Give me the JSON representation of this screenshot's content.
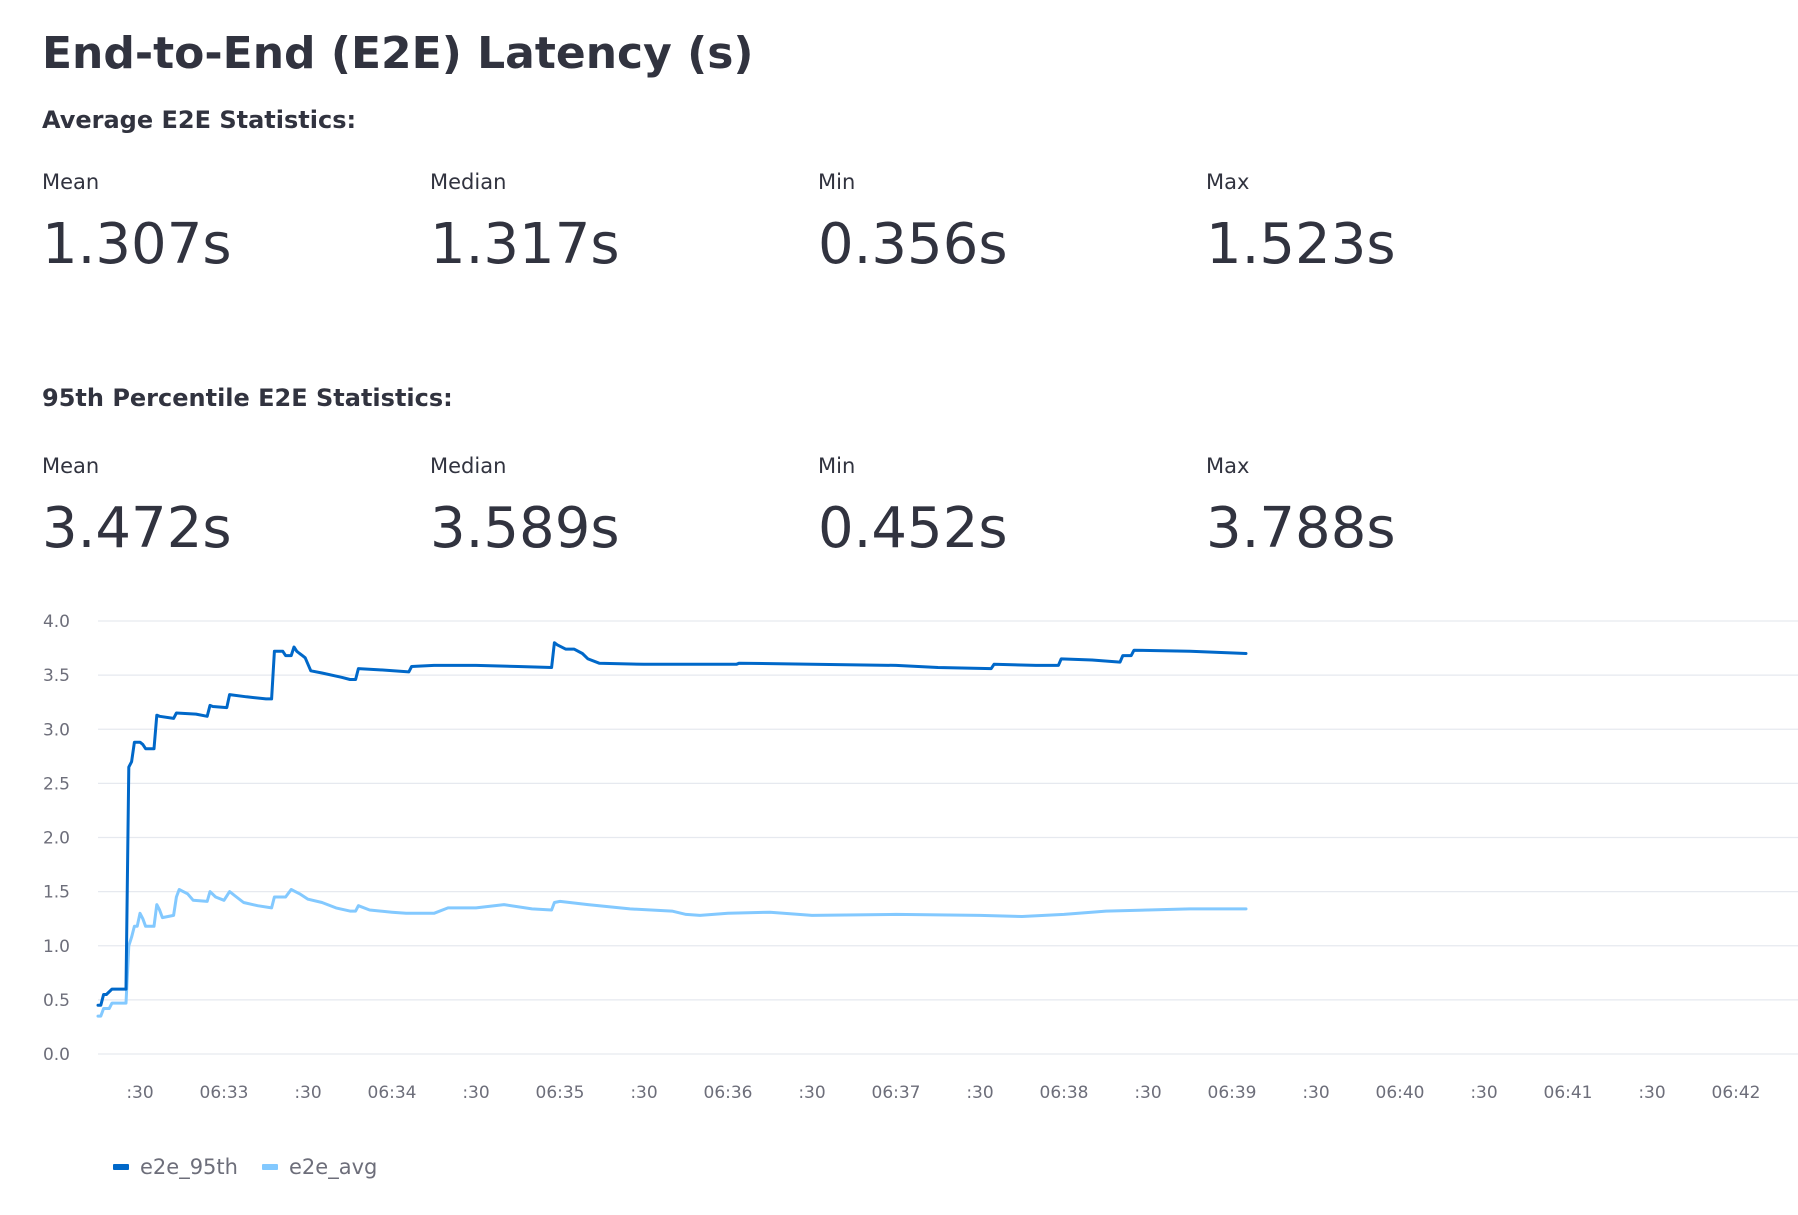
{
  "page_title": "End-to-End (E2E) Latency (s)",
  "avg_section": {
    "title": "Average E2E Statistics:",
    "metrics": [
      {
        "label": "Mean",
        "value": "1.307s"
      },
      {
        "label": "Median",
        "value": "1.317s"
      },
      {
        "label": "Min",
        "value": "0.356s"
      },
      {
        "label": "Max",
        "value": "1.523s"
      }
    ]
  },
  "p95_section": {
    "title": "95th Percentile E2E Statistics:",
    "metrics": [
      {
        "label": "Mean",
        "value": "3.472s"
      },
      {
        "label": "Median",
        "value": "3.589s"
      },
      {
        "label": "Min",
        "value": "0.452s"
      },
      {
        "label": "Max",
        "value": "3.788s"
      }
    ]
  },
  "chart_data": {
    "type": "line",
    "ylim": [
      0,
      4.0
    ],
    "yticks": [
      "4.0",
      "3.5",
      "3.0",
      "2.5",
      "2.0",
      "1.5",
      "1.0",
      "0.5",
      "0.0"
    ],
    "xlim": [
      "06:32:15",
      "06:42:30"
    ],
    "xticks": [
      {
        "t": "06:32:30",
        "label": ":30"
      },
      {
        "t": "06:33:00",
        "label": "06:33"
      },
      {
        "t": "06:33:30",
        "label": ":30"
      },
      {
        "t": "06:34:00",
        "label": "06:34"
      },
      {
        "t": "06:34:30",
        "label": ":30"
      },
      {
        "t": "06:35:00",
        "label": "06:35"
      },
      {
        "t": "06:35:30",
        "label": ":30"
      },
      {
        "t": "06:36:00",
        "label": "06:36"
      },
      {
        "t": "06:36:30",
        "label": ":30"
      },
      {
        "t": "06:37:00",
        "label": "06:37"
      },
      {
        "t": "06:37:30",
        "label": ":30"
      },
      {
        "t": "06:38:00",
        "label": "06:38"
      },
      {
        "t": "06:38:30",
        "label": ":30"
      },
      {
        "t": "06:39:00",
        "label": "06:39"
      },
      {
        "t": "06:39:30",
        "label": ":30"
      },
      {
        "t": "06:40:00",
        "label": "06:40"
      },
      {
        "t": "06:40:30",
        "label": ":30"
      },
      {
        "t": "06:41:00",
        "label": "06:41"
      },
      {
        "t": "06:41:30",
        "label": ":30"
      },
      {
        "t": "06:42:00",
        "label": "06:42"
      }
    ],
    "grid": true,
    "legend_position": "bottom-left",
    "series": [
      {
        "name": "e2e_95th",
        "color": "#0068c9",
        "points": [
          [
            "06:32:15",
            0.45
          ],
          [
            "06:32:16",
            0.45
          ],
          [
            "06:32:17",
            0.55
          ],
          [
            "06:32:18",
            0.55
          ],
          [
            "06:32:20",
            0.6
          ],
          [
            "06:32:25",
            0.6
          ],
          [
            "06:32:26",
            2.65
          ],
          [
            "06:32:27",
            2.7
          ],
          [
            "06:32:28",
            2.88
          ],
          [
            "06:32:30",
            2.88
          ],
          [
            "06:32:31",
            2.86
          ],
          [
            "06:32:32",
            2.82
          ],
          [
            "06:32:35",
            2.82
          ],
          [
            "06:32:36",
            3.13
          ],
          [
            "06:32:37",
            3.12
          ],
          [
            "06:32:42",
            3.1
          ],
          [
            "06:32:43",
            3.15
          ],
          [
            "06:32:50",
            3.14
          ],
          [
            "06:32:54",
            3.12
          ],
          [
            "06:32:55",
            3.22
          ],
          [
            "06:32:56",
            3.21
          ],
          [
            "06:33:01",
            3.2
          ],
          [
            "06:33:02",
            3.32
          ],
          [
            "06:33:08",
            3.3
          ],
          [
            "06:33:15",
            3.28
          ],
          [
            "06:33:17",
            3.28
          ],
          [
            "06:33:18",
            3.72
          ],
          [
            "06:33:21",
            3.72
          ],
          [
            "06:33:22",
            3.68
          ],
          [
            "06:33:24",
            3.68
          ],
          [
            "06:33:25",
            3.76
          ],
          [
            "06:33:26",
            3.72
          ],
          [
            "06:33:27",
            3.7
          ],
          [
            "06:33:28",
            3.68
          ],
          [
            "06:33:29",
            3.66
          ],
          [
            "06:33:30",
            3.6
          ],
          [
            "06:33:31",
            3.54
          ],
          [
            "06:33:35",
            3.52
          ],
          [
            "06:33:42",
            3.48
          ],
          [
            "06:33:45",
            3.46
          ],
          [
            "06:33:47",
            3.46
          ],
          [
            "06:33:48",
            3.56
          ],
          [
            "06:33:55",
            3.55
          ],
          [
            "06:34:06",
            3.53
          ],
          [
            "06:34:07",
            3.58
          ],
          [
            "06:34:15",
            3.59
          ],
          [
            "06:34:30",
            3.59
          ],
          [
            "06:34:45",
            3.58
          ],
          [
            "06:34:57",
            3.57
          ],
          [
            "06:34:58",
            3.8
          ],
          [
            "06:34:59",
            3.78
          ],
          [
            "06:35:02",
            3.74
          ],
          [
            "06:35:05",
            3.74
          ],
          [
            "06:35:08",
            3.7
          ],
          [
            "06:35:10",
            3.65
          ],
          [
            "06:35:14",
            3.61
          ],
          [
            "06:35:30",
            3.6
          ],
          [
            "06:36:00",
            3.6
          ],
          [
            "06:36:03",
            3.6
          ],
          [
            "06:36:04",
            3.61
          ],
          [
            "06:36:30",
            3.6
          ],
          [
            "06:37:00",
            3.59
          ],
          [
            "06:37:15",
            3.57
          ],
          [
            "06:37:34",
            3.56
          ],
          [
            "06:37:35",
            3.6
          ],
          [
            "06:37:50",
            3.59
          ],
          [
            "06:37:58",
            3.59
          ],
          [
            "06:37:59",
            3.65
          ],
          [
            "06:38:10",
            3.64
          ],
          [
            "06:38:20",
            3.62
          ],
          [
            "06:38:21",
            3.68
          ],
          [
            "06:38:24",
            3.68
          ],
          [
            "06:38:25",
            3.73
          ],
          [
            "06:38:45",
            3.72
          ],
          [
            "06:39:05",
            3.7
          ]
        ]
      },
      {
        "name": "e2e_avg",
        "color": "#83c9ff",
        "points": [
          [
            "06:32:15",
            0.35
          ],
          [
            "06:32:16",
            0.35
          ],
          [
            "06:32:17",
            0.42
          ],
          [
            "06:32:19",
            0.42
          ],
          [
            "06:32:20",
            0.47
          ],
          [
            "06:32:25",
            0.47
          ],
          [
            "06:32:26",
            1.0
          ],
          [
            "06:32:27",
            1.08
          ],
          [
            "06:32:28",
            1.18
          ],
          [
            "06:32:29",
            1.18
          ],
          [
            "06:32:30",
            1.3
          ],
          [
            "06:32:31",
            1.25
          ],
          [
            "06:32:32",
            1.18
          ],
          [
            "06:32:35",
            1.18
          ],
          [
            "06:32:36",
            1.38
          ],
          [
            "06:32:37",
            1.33
          ],
          [
            "06:32:38",
            1.26
          ],
          [
            "06:32:42",
            1.28
          ],
          [
            "06:32:43",
            1.45
          ],
          [
            "06:32:44",
            1.52
          ],
          [
            "06:32:47",
            1.48
          ],
          [
            "06:32:49",
            1.42
          ],
          [
            "06:32:54",
            1.41
          ],
          [
            "06:32:55",
            1.5
          ],
          [
            "06:32:57",
            1.45
          ],
          [
            "06:33:00",
            1.42
          ],
          [
            "06:33:02",
            1.5
          ],
          [
            "06:33:04",
            1.46
          ],
          [
            "06:33:07",
            1.4
          ],
          [
            "06:33:12",
            1.37
          ],
          [
            "06:33:17",
            1.35
          ],
          [
            "06:33:18",
            1.45
          ],
          [
            "06:33:22",
            1.45
          ],
          [
            "06:33:24",
            1.52
          ],
          [
            "06:33:27",
            1.48
          ],
          [
            "06:33:30",
            1.43
          ],
          [
            "06:33:35",
            1.4
          ],
          [
            "06:33:40",
            1.35
          ],
          [
            "06:33:45",
            1.32
          ],
          [
            "06:33:47",
            1.32
          ],
          [
            "06:33:48",
            1.37
          ],
          [
            "06:33:52",
            1.33
          ],
          [
            "06:34:00",
            1.31
          ],
          [
            "06:34:05",
            1.3
          ],
          [
            "06:34:15",
            1.3
          ],
          [
            "06:34:20",
            1.35
          ],
          [
            "06:34:30",
            1.35
          ],
          [
            "06:34:40",
            1.38
          ],
          [
            "06:34:50",
            1.34
          ],
          [
            "06:34:57",
            1.33
          ],
          [
            "06:34:58",
            1.4
          ],
          [
            "06:35:00",
            1.41
          ],
          [
            "06:35:10",
            1.38
          ],
          [
            "06:35:25",
            1.34
          ],
          [
            "06:35:40",
            1.32
          ],
          [
            "06:35:45",
            1.29
          ],
          [
            "06:35:50",
            1.28
          ],
          [
            "06:36:00",
            1.3
          ],
          [
            "06:36:15",
            1.31
          ],
          [
            "06:36:30",
            1.28
          ],
          [
            "06:37:00",
            1.29
          ],
          [
            "06:37:30",
            1.28
          ],
          [
            "06:37:45",
            1.27
          ],
          [
            "06:38:00",
            1.29
          ],
          [
            "06:38:15",
            1.32
          ],
          [
            "06:38:30",
            1.33
          ],
          [
            "06:38:45",
            1.34
          ],
          [
            "06:39:05",
            1.34
          ]
        ]
      }
    ]
  }
}
